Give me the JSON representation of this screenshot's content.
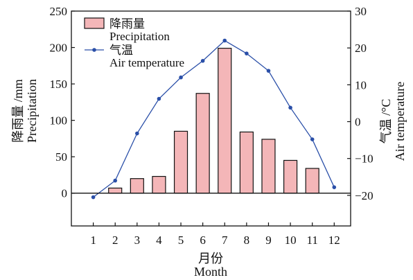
{
  "chart_data": {
    "type": "bar+line",
    "categories": [
      "1",
      "2",
      "3",
      "4",
      "5",
      "6",
      "7",
      "8",
      "9",
      "10",
      "11",
      "12"
    ],
    "series": [
      {
        "name": "降雨量",
        "name_en": "Precipitation",
        "type": "bar",
        "axis": "left",
        "color": "#f4b6b8",
        "values": [
          0,
          7,
          20,
          23,
          85,
          137,
          199,
          84,
          74,
          45,
          34,
          0
        ]
      },
      {
        "name": "气温",
        "name_en": "Air temperature",
        "type": "line",
        "axis": "right",
        "color": "#2a4fa8",
        "values": [
          -20.5,
          -16,
          -3.2,
          6.2,
          12,
          16.5,
          22,
          18.5,
          13.8,
          3.8,
          -4.8,
          -17.8
        ]
      }
    ],
    "y_left": {
      "label_zh": "降雨量 /mm",
      "label_en": "Precipitation",
      "ylim": [
        -45,
        250
      ],
      "ticks": [
        "0",
        "50",
        "100",
        "150",
        "200",
        "250"
      ],
      "tick_values": [
        0,
        50,
        100,
        150,
        200,
        250
      ]
    },
    "y_right": {
      "label_zh": "气温 /°C",
      "label_en": "Air temperature",
      "ylim": [
        -28.3,
        30
      ],
      "ticks": [
        "−20",
        "−10",
        "0",
        "10",
        "20",
        "30"
      ],
      "tick_values": [
        -20,
        -10,
        0,
        10,
        20,
        30
      ]
    },
    "x_axis": {
      "label_zh": "月份",
      "label_en": "Month"
    },
    "legend_position": "top-left",
    "grid": false
  }
}
